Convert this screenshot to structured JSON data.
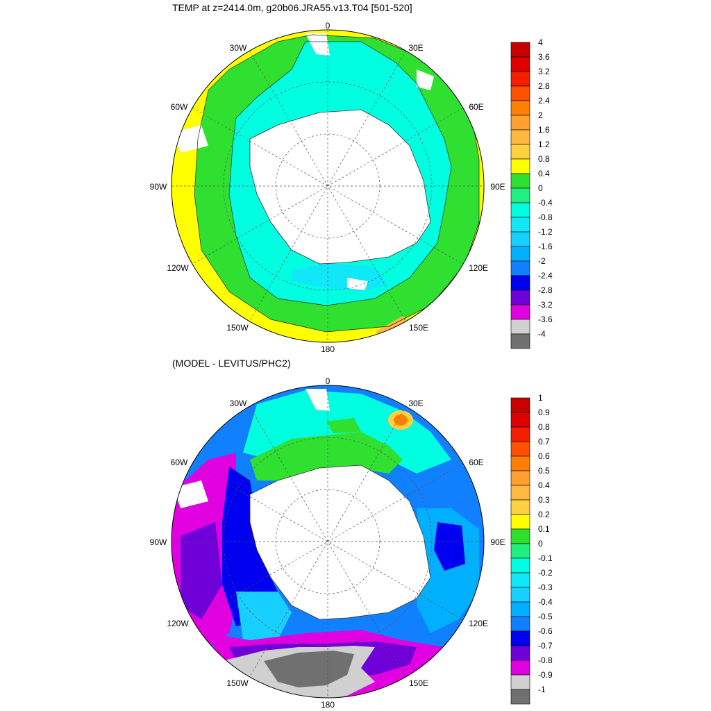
{
  "panels": [
    {
      "id": "top",
      "title": "TEMP at z=2414.0m, g20b06.JRA55.v13.T04 [501-520]",
      "lon_labels": [
        "0",
        "30E",
        "60E",
        "90E",
        "120E",
        "150E",
        "180",
        "150W",
        "120W",
        "90W",
        "60W",
        "30W"
      ],
      "colorbar": {
        "labels": [
          "4",
          "3.6",
          "3.2",
          "2.8",
          "2.4",
          "2",
          "1.6",
          "1.2",
          "0.8",
          "0.4",
          "0",
          "-0.4",
          "-0.8",
          "-1.2",
          "-1.6",
          "-2",
          "-2.4",
          "-2.8",
          "-3.2",
          "-3.6",
          "-4"
        ],
        "colors": [
          "#c80000",
          "#e00000",
          "#f51e00",
          "#ff5000",
          "#ff8000",
          "#ffa030",
          "#ffb840",
          "#ffd040",
          "#ffff00",
          "#30e030",
          "#20f080",
          "#00ffe0",
          "#10e8f8",
          "#18d0ff",
          "#00b0ff",
          "#1080ff",
          "#0000f0",
          "#7000d8",
          "#e000e0",
          "#d0d0d0",
          "#707070"
        ]
      }
    },
    {
      "id": "bottom",
      "title": "(MODEL - LEVITUS/PHC2)",
      "lon_labels": [
        "0",
        "30E",
        "60E",
        "90E",
        "120E",
        "150E",
        "180",
        "150W",
        "120W",
        "90W",
        "60W",
        "30W"
      ],
      "colorbar": {
        "labels": [
          "1",
          "0.9",
          "0.8",
          "0.7",
          "0.6",
          "0.5",
          "0.4",
          "0.3",
          "0.2",
          "0.1",
          "0",
          "-0.1",
          "-0.2",
          "-0.3",
          "-0.4",
          "-0.5",
          "-0.6",
          "-0.7",
          "-0.8",
          "-0.9",
          "-1"
        ],
        "colors": [
          "#c80000",
          "#e00000",
          "#f51e00",
          "#ff5000",
          "#ff8000",
          "#ffa030",
          "#ffb840",
          "#ffd040",
          "#ffff00",
          "#30e030",
          "#20f080",
          "#00ffe0",
          "#10e8f8",
          "#18d0ff",
          "#00b0ff",
          "#1080ff",
          "#0000f0",
          "#7000d8",
          "#e000e0",
          "#d0d0d0",
          "#707070"
        ]
      }
    }
  ]
}
